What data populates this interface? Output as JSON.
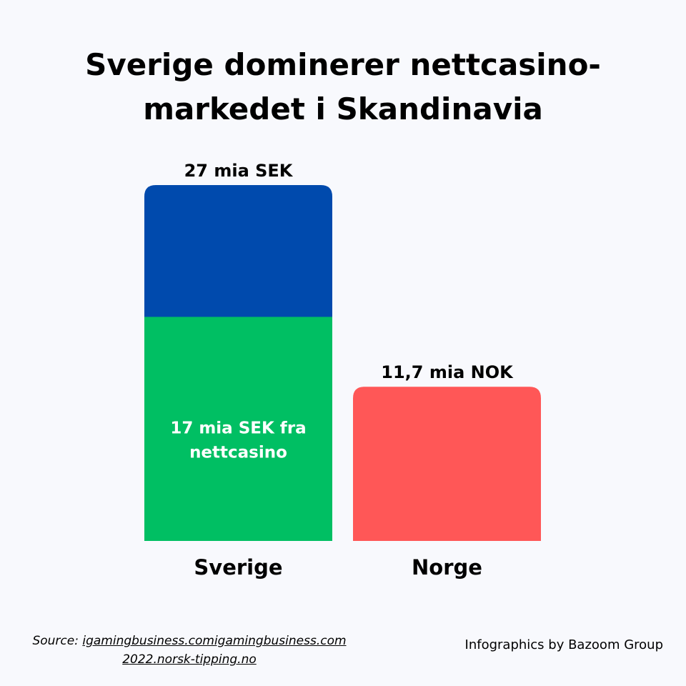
{
  "colors": {
    "background": "#f8f9fd",
    "sverige_total": "#004aad",
    "sverige_nettcasino": "#00bf63",
    "norge": "#ff5757",
    "text": "#000000",
    "inner_text": "#ffffff"
  },
  "title_lines": [
    "Sverige dominerer nettcasino-",
    "markedet i Skandinavia"
  ],
  "chart_data": {
    "type": "bar",
    "title": "Sverige dominerer nettcasino-markedet i Skandinavia",
    "categories": [
      "Sverige",
      "Norge"
    ],
    "series": [
      {
        "category": "Sverige",
        "segments": [
          17,
          10
        ],
        "total": 27,
        "unit": "mia SEK"
      },
      {
        "category": "Norge",
        "segments": [
          11.7
        ],
        "total": 11.7,
        "unit": "mia NOK"
      }
    ],
    "ylim": [
      0,
      27
    ],
    "grid": false,
    "value_labels": [
      "27 mia SEK",
      "11,7 mia NOK"
    ],
    "inner_label_lines": [
      "17 mia SEK fra",
      "nettcasino"
    ]
  },
  "footer": {
    "source_prefix": "Source: ",
    "source_link_1": "igamingbusiness.comigamingbusiness.com",
    "source_link_2": "2022.norsk-tipping.no",
    "credit": "Infographics by Bazoom Group"
  }
}
